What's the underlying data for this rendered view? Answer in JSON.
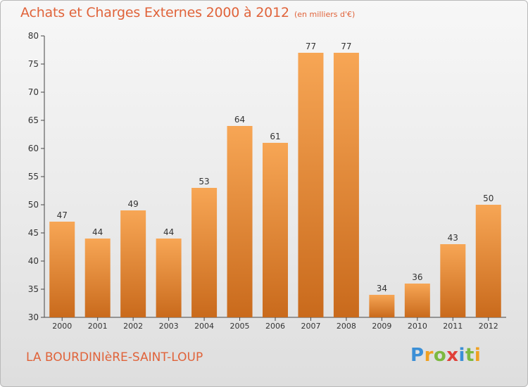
{
  "header": {
    "title": "Achats et Charges Externes 2000 à 2012",
    "subtitle": "(en milliers d'€)"
  },
  "footer": {
    "commune": "LA BOURDINIèRE-SAINT-LOUP",
    "logo": "Proxiti"
  },
  "colors": {
    "title": "#e0633a",
    "bar_top": "#f7a655",
    "bar_bottom": "#c96a1c",
    "background": "#ececec"
  },
  "chart_data": {
    "type": "bar",
    "categories": [
      "2000",
      "2001",
      "2002",
      "2003",
      "2004",
      "2005",
      "2006",
      "2007",
      "2008",
      "2009",
      "2010",
      "2011",
      "2012"
    ],
    "values": [
      47,
      44,
      49,
      44,
      53,
      64,
      61,
      77,
      77,
      34,
      36,
      43,
      50
    ],
    "title": "Achats et Charges Externes 2000 à 2012",
    "xlabel": "",
    "ylabel": "",
    "ylim": [
      30,
      80
    ],
    "yticks": [
      30,
      35,
      40,
      45,
      50,
      55,
      60,
      65,
      70,
      75,
      80
    ],
    "grid": false,
    "data_labels": true
  }
}
